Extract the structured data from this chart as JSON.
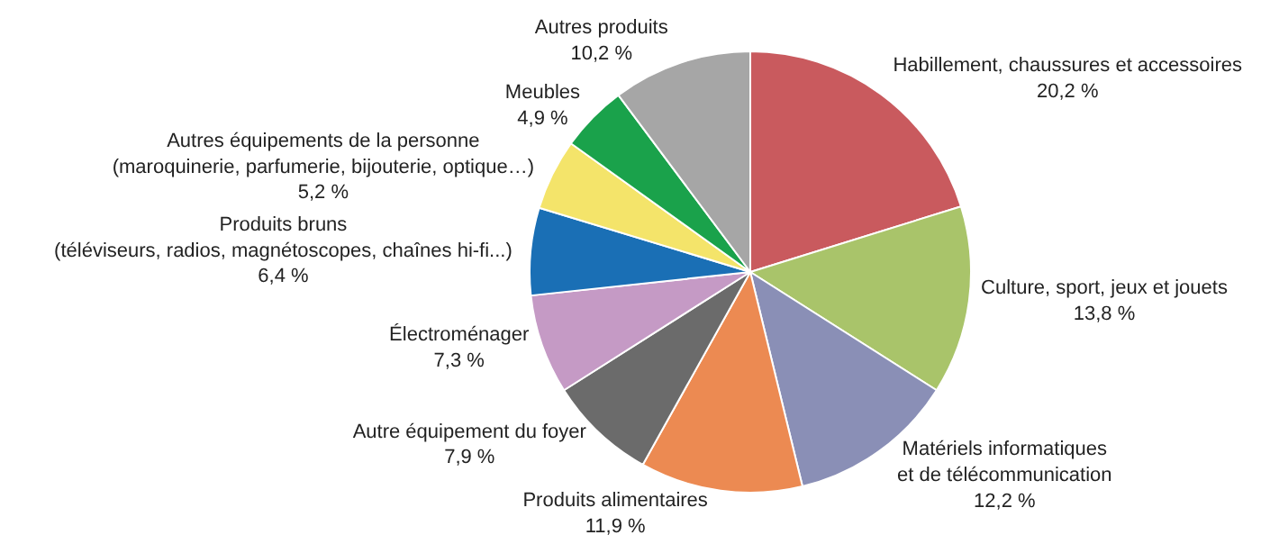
{
  "chart_data": {
    "type": "pie",
    "categories": [
      "Habillement, chaussures et accessoires",
      "Culture, sport, jeux et jouets",
      "Matériels informatiques\net de télécommunication",
      "Produits alimentaires",
      "Autre équipement du foyer",
      "Électroménager",
      "Produits bruns\n(téléviseurs, radios, magnétoscopes, chaînes hi-fi...)",
      "Autres équipements de la personne\n(maroquinerie, parfumerie, bijouterie, optique…)",
      "Meubles",
      "Autres produits"
    ],
    "values": [
      20.2,
      13.8,
      12.2,
      11.9,
      7.9,
      7.3,
      6.4,
      5.2,
      4.9,
      10.2
    ],
    "value_labels": [
      "20,2 %",
      "13,8 %",
      "12,2 %",
      "11,9 %",
      "7,9 %",
      "7,3 %",
      "6,4 %",
      "5,2 %",
      "4,9 %",
      "10,2 %"
    ],
    "colors": [
      "#c95a5e",
      "#a9c46a",
      "#8a8fb6",
      "#ec8a52",
      "#6b6b6b",
      "#c59ac5",
      "#1a6fb5",
      "#f4e46a",
      "#1aa24b",
      "#a6a6a6"
    ]
  }
}
